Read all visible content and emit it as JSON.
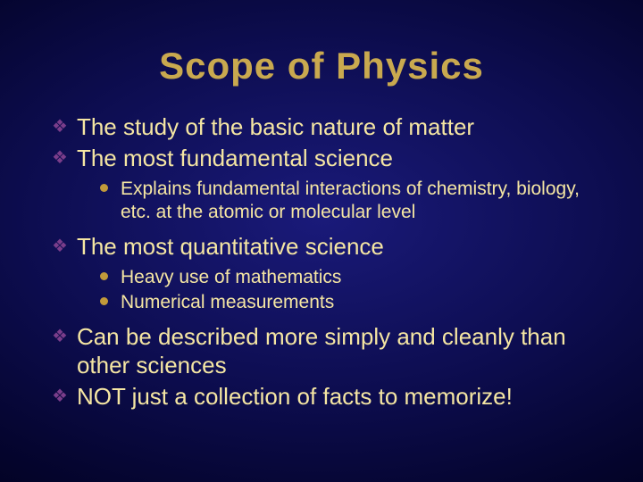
{
  "slide": {
    "title": "Scope of Physics",
    "title_fontsize": 42,
    "title_color": "#c9a94f",
    "background": {
      "type": "radial-gradient",
      "center_color": "#1a1a7a",
      "mid_color": "#0d0d50",
      "outer_color": "#050530",
      "edge_color": "#000018"
    },
    "level1_bullet_char": "❖",
    "level1_bullet_color": "#7a3d8a",
    "level1_fontsize": 26,
    "level2_dot_color": "#c29a3a",
    "level2_fontsize": 21,
    "text_color": "#f5e6a3",
    "items": [
      {
        "text": "The study of the basic nature of matter",
        "sub": []
      },
      {
        "text": "The most fundamental science",
        "sub": [
          "Explains fundamental interactions of chemistry, biology, etc. at the atomic or molecular level"
        ]
      },
      {
        "text": "The most quantitative science",
        "sub": [
          "Heavy use of mathematics",
          "Numerical measurements"
        ]
      },
      {
        "text": "Can be described more simply and cleanly than other sciences",
        "sub": []
      },
      {
        "text": "NOT just a collection of facts to memorize!",
        "sub": []
      }
    ]
  }
}
